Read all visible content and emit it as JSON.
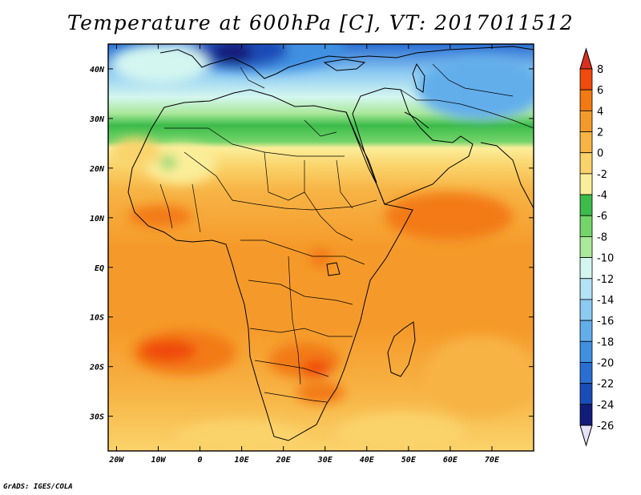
{
  "title": "Temperature at 600hPa [C], VT: 2017011512",
  "credit": "GrADS: IGES/COLA",
  "map": {
    "lon_range": [
      -22,
      80
    ],
    "lat_range": [
      -37,
      45
    ],
    "lon_ticks": [
      {
        "value": -20,
        "label": "20W"
      },
      {
        "value": -10,
        "label": "10W"
      },
      {
        "value": 0,
        "label": "0"
      },
      {
        "value": 10,
        "label": "10E"
      },
      {
        "value": 20,
        "label": "20E"
      },
      {
        "value": 30,
        "label": "30E"
      },
      {
        "value": 40,
        "label": "40E"
      },
      {
        "value": 50,
        "label": "50E"
      },
      {
        "value": 60,
        "label": "60E"
      },
      {
        "value": 70,
        "label": "70E"
      }
    ],
    "lat_ticks": [
      {
        "value": 40,
        "label": "40N"
      },
      {
        "value": 30,
        "label": "30N"
      },
      {
        "value": 20,
        "label": "20N"
      },
      {
        "value": 10,
        "label": "10N"
      },
      {
        "value": 0,
        "label": "EQ"
      },
      {
        "value": -10,
        "label": "10S"
      },
      {
        "value": -20,
        "label": "20S"
      },
      {
        "value": -30,
        "label": "30S"
      }
    ]
  },
  "colorbar": {
    "levels": [
      "8",
      "6",
      "4",
      "2",
      "0",
      "-2",
      "-4",
      "-6",
      "-8",
      "-10",
      "-12",
      "-14",
      "-16",
      "-18",
      "-20",
      "-22",
      "-24",
      "-26"
    ],
    "colors": [
      "#d7301f",
      "#f04a0e",
      "#f37a12",
      "#f59a2a",
      "#f7b445",
      "#fad36a",
      "#fbee9a",
      "#3cbc4a",
      "#73d46a",
      "#aae89a",
      "#d4f6f0",
      "#b4e2f7",
      "#8ccaf2",
      "#62aeeb",
      "#3f90e2",
      "#2a6ed2",
      "#1a4cb8",
      "#121c7a",
      "#e6e2fa"
    ]
  }
}
